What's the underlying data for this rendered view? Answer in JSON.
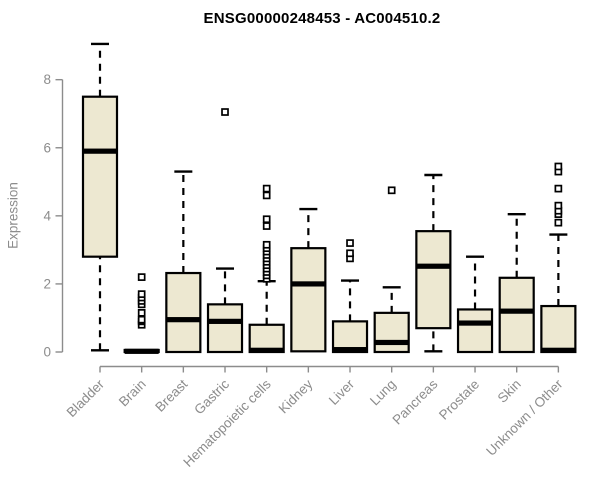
{
  "page": {
    "background": "#ffffff"
  },
  "chart_data": {
    "type": "boxplot",
    "title": "ENSG00000248453 - AC004510.2",
    "ylabel": "Expression",
    "xlabel": "",
    "y_ticks": [
      0,
      2,
      4,
      6,
      8
    ],
    "ylim": [
      0,
      9.2
    ],
    "grid": false,
    "legend": false,
    "categories": [
      "Bladder",
      "Brain",
      "Breast",
      "Gastric",
      "Hematopoietic cells",
      "Kidney",
      "Liver",
      "Lung",
      "Pancreas",
      "Prostate",
      "Skin",
      "Unknown / Other"
    ],
    "series": [
      {
        "name": "Bladder",
        "min": 0.05,
        "q1": 2.8,
        "median": 5.9,
        "q3": 7.5,
        "max": 9.05,
        "outliers": []
      },
      {
        "name": "Brain",
        "min": 0.0,
        "q1": 0.0,
        "median": 0.02,
        "q3": 0.06,
        "max": 0.08,
        "outliers": [
          0.8,
          0.9,
          0.95,
          1.15,
          1.4,
          1.5,
          1.6,
          1.7,
          2.2
        ]
      },
      {
        "name": "Breast",
        "min": 0.0,
        "q1": 0.0,
        "median": 0.95,
        "q3": 2.32,
        "max": 5.3,
        "outliers": []
      },
      {
        "name": "Gastric",
        "min": 0.0,
        "q1": 0.0,
        "median": 0.9,
        "q3": 1.4,
        "max": 2.45,
        "outliers": [
          7.05
        ]
      },
      {
        "name": "Hematopoietic cells",
        "min": 0.0,
        "q1": 0.0,
        "median": 0.05,
        "q3": 0.8,
        "max": 2.08,
        "outliers": [
          2.15,
          2.25,
          2.35,
          2.45,
          2.55,
          2.65,
          2.75,
          2.85,
          2.95,
          3.05,
          3.15,
          3.7,
          3.9,
          4.6,
          4.8
        ]
      },
      {
        "name": "Kidney",
        "min": 0.02,
        "q1": 0.02,
        "median": 2.0,
        "q3": 3.05,
        "max": 4.2,
        "outliers": []
      },
      {
        "name": "Liver",
        "min": 0.0,
        "q1": 0.0,
        "median": 0.07,
        "q3": 0.9,
        "max": 2.1,
        "outliers": [
          2.75,
          2.9,
          3.2
        ]
      },
      {
        "name": "Lung",
        "min": 0.0,
        "q1": 0.0,
        "median": 0.28,
        "q3": 1.15,
        "max": 1.9,
        "outliers": [
          4.75
        ]
      },
      {
        "name": "Pancreas",
        "min": 0.02,
        "q1": 0.7,
        "median": 2.52,
        "q3": 3.55,
        "max": 5.2,
        "outliers": []
      },
      {
        "name": "Prostate",
        "min": 0.0,
        "q1": 0.0,
        "median": 0.85,
        "q3": 1.25,
        "max": 2.8,
        "outliers": []
      },
      {
        "name": "Skin",
        "min": 0.0,
        "q1": 0.0,
        "median": 1.2,
        "q3": 2.18,
        "max": 4.05,
        "outliers": []
      },
      {
        "name": "Unknown / Other",
        "min": 0.0,
        "q1": 0.0,
        "median": 0.05,
        "q3": 1.35,
        "max": 3.45,
        "outliers": [
          3.8,
          4.05,
          4.15,
          4.3,
          4.8,
          5.3,
          5.45
        ]
      }
    ],
    "style": {
      "box_fill": "#EDE8D1",
      "box_stroke": "#000000",
      "median_color": "#000000",
      "whisker_style": "dashed",
      "outlier_marker": "open-square",
      "axis_color": "#8C8C8C",
      "tick_label_color": "#8C8C8C",
      "title_color": "#000000",
      "background": "#FFFFFF"
    }
  }
}
